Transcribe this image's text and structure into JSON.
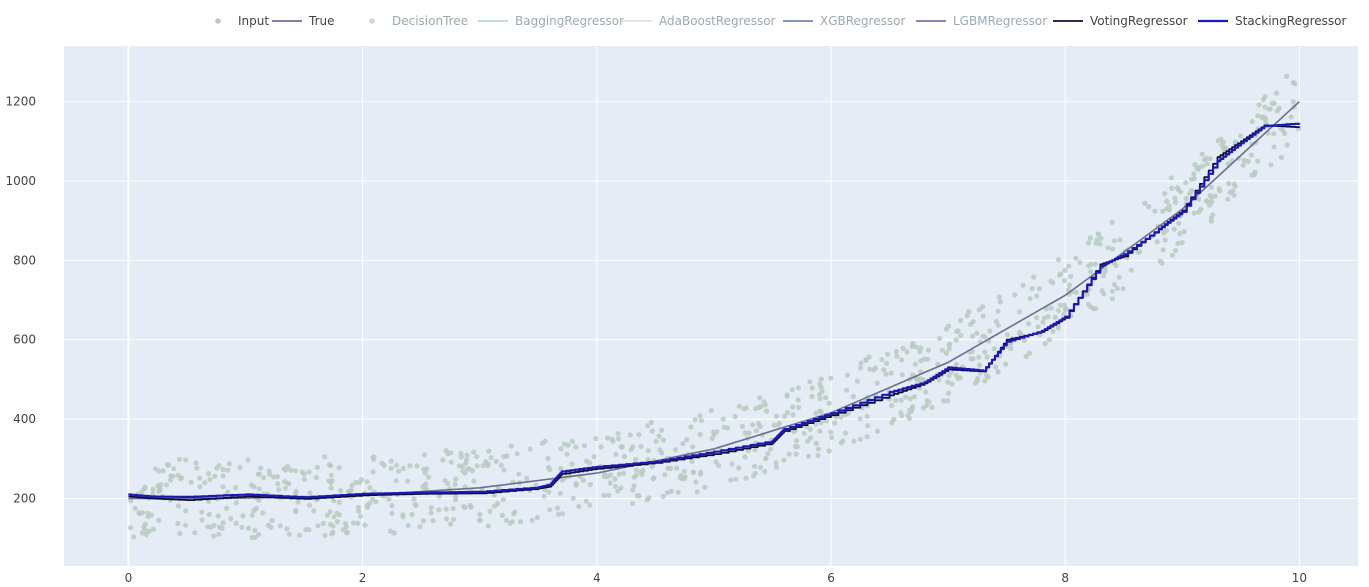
{
  "chart_data": {
    "type": "line",
    "title": "",
    "xlabel": "",
    "ylabel": "",
    "xlim": [
      -0.55,
      10.5
    ],
    "ylim": [
      30,
      1340
    ],
    "grid": true,
    "legend_position": "top-right",
    "x_ticks": [
      0,
      2,
      4,
      6,
      8,
      10
    ],
    "y_ticks": [
      200,
      400,
      600,
      800,
      1000,
      1200
    ],
    "x_tick_labels": [
      "0",
      "2",
      "4",
      "6",
      "8",
      "10"
    ],
    "y_tick_labels": [
      "200",
      "400",
      "600",
      "800",
      "1000",
      "1200"
    ],
    "colors": {
      "plot_bg": "#e5ecf6",
      "grid": "#ffffff",
      "input": "#b8cbc1",
      "true": "#6e6e90",
      "decision_tree": "#c6dcd4",
      "bagging": "#bcd9d4",
      "adaboost": "#d5e4dc",
      "xgb": "#7388b8",
      "lgbm": "#6e7aa8",
      "voting": "#0d0d3d",
      "stacking": "#1a1ab0"
    },
    "legend": [
      {
        "name": "Input",
        "kind": "marker",
        "color": "#b8cbc1",
        "text_color": "#444444"
      },
      {
        "name": "True",
        "kind": "line",
        "color": "#6e6e90",
        "text_color": "#444444"
      },
      {
        "name": "DecisionTree",
        "kind": "marker",
        "color": "#c6dcd4",
        "text_color": "#9aaab2"
      },
      {
        "name": "BaggingRegressor",
        "kind": "line",
        "color": "#bcd9d4",
        "text_color": "#9aaab2"
      },
      {
        "name": "AdaBoostRegressor",
        "kind": "line",
        "color": "#d5e4dc",
        "text_color": "#9aaab2"
      },
      {
        "name": "XGBRegressor",
        "kind": "line",
        "color": "#7388b8",
        "text_color": "#9aaab2"
      },
      {
        "name": "LGBMRegressor",
        "kind": "line",
        "color": "#6e7aa8",
        "text_color": "#9aaab2"
      },
      {
        "name": "VotingRegressor",
        "kind": "line",
        "color": "#0d0d3d",
        "text_color": "#444444"
      },
      {
        "name": "StackingRegressor",
        "kind": "line",
        "color": "#1a1ab0",
        "text_color": "#444444"
      }
    ],
    "input_scatter": {
      "description": "1000 noisy samples around the true curve, x uniform in [0, 10], noise roughly ±100",
      "count": 1000,
      "noise_amplitude": 100
    },
    "true_curve": {
      "x": [
        0,
        1,
        2,
        3,
        4,
        5,
        6,
        7,
        8,
        9,
        10
      ],
      "y": [
        200,
        201,
        208,
        227,
        264,
        325,
        416,
        543,
        712,
        929,
        1200
      ]
    },
    "series": [
      {
        "name": "VotingRegressor",
        "x": [
          0,
          0.2,
          0.5,
          1.0,
          1.5,
          2.0,
          2.5,
          3.0,
          3.5,
          3.6,
          3.7,
          4.0,
          4.5,
          5.0,
          5.5,
          5.6,
          6.0,
          6.5,
          6.8,
          7.0,
          7.3,
          7.5,
          7.8,
          8.0,
          8.3,
          8.5,
          8.8,
          9.0,
          9.3,
          9.5,
          9.7,
          10.0
        ],
        "y": [
          205,
          200,
          196,
          205,
          199,
          208,
          212,
          213,
          225,
          230,
          262,
          275,
          290,
          312,
          340,
          370,
          410,
          460,
          490,
          525,
          520,
          600,
          620,
          655,
          790,
          810,
          880,
          925,
          1060,
          1100,
          1140,
          1135
        ]
      },
      {
        "name": "StackingRegressor",
        "x": [
          0,
          0.2,
          0.5,
          1.0,
          1.5,
          2.0,
          2.5,
          3.0,
          3.5,
          3.6,
          3.7,
          4.0,
          4.5,
          5.0,
          5.5,
          5.6,
          6.0,
          6.5,
          6.8,
          7.0,
          7.3,
          7.5,
          7.8,
          8.0,
          8.3,
          8.5,
          8.8,
          9.0,
          9.3,
          9.5,
          9.7,
          10.0
        ],
        "y": [
          210,
          205,
          204,
          210,
          203,
          212,
          215,
          217,
          228,
          235,
          268,
          280,
          293,
          318,
          345,
          375,
          415,
          468,
          493,
          530,
          522,
          595,
          622,
          658,
          785,
          815,
          878,
          922,
          1050,
          1095,
          1138,
          1145
        ]
      }
    ]
  }
}
